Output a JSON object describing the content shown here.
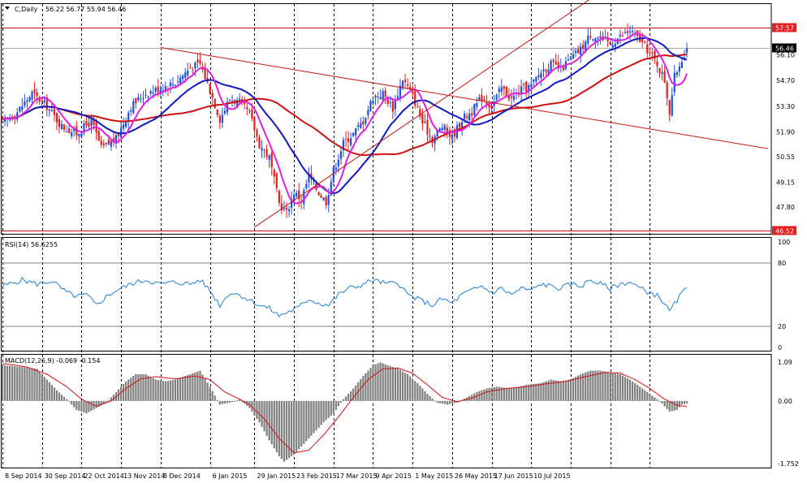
{
  "header": {
    "menu_icon": "triangle-down-icon",
    "symbol_label": "C,Daily",
    "ohlc_text": "56.22 56.77 55.94 56.46"
  },
  "rsi_panel": {
    "label": "RSI(14) 56.6255"
  },
  "macd_panel": {
    "label": "MACD(12,26,9) -0.069 -0.154"
  },
  "colors": {
    "background": "#ffffff",
    "grid": "#000000",
    "candle_up": "#1e50e6",
    "candle_down": "#e61e1e",
    "ma_fast": "#e020e0",
    "ma_mid": "#1018c0",
    "ma_slow": "#d01010",
    "trendline": "#c81414",
    "rsi_line": "#1e7fd6",
    "macd_hist": "#808080",
    "macd_signal": "#d01010"
  },
  "chart_data": [
    {
      "type": "candlestick",
      "panel": "price",
      "title": "C,Daily",
      "ohlc_last": {
        "open": 56.22,
        "high": 56.77,
        "low": 55.94,
        "close": 56.46
      },
      "y_ticks": [
        "56.10",
        "54.70",
        "53.30",
        "51.90",
        "50.55",
        "49.15",
        "47.80"
      ],
      "ylim": [
        46.52,
        58.6
      ],
      "x_ticks": [
        "8 Sep 2014",
        "30 Sep 2014",
        "22 Oct 2014",
        "13 Nov 2014",
        "8 Dec 2014",
        "6 Jan 2015",
        "29 Jan 2015",
        "23 Feb 2015",
        "17 Mar 2015",
        "9 Apr 2015",
        "1 May 2015",
        "26 May 2015",
        "17 Jun 2015",
        "10 Jul 2015"
      ],
      "price_tags": [
        {
          "value": 57.57,
          "text": "57.57",
          "kind": "horizontal-line"
        },
        {
          "value": 56.46,
          "text": "56.46",
          "kind": "current-price"
        },
        {
          "value": 46.52,
          "text": "46.52",
          "kind": "horizontal-line"
        }
      ],
      "close_anchors": [
        [
          0,
          52.4
        ],
        [
          6,
          53.0
        ],
        [
          12,
          54.0
        ],
        [
          18,
          53.3
        ],
        [
          24,
          52.2
        ],
        [
          30,
          51.8
        ],
        [
          36,
          52.5
        ],
        [
          40,
          51.0
        ],
        [
          46,
          51.5
        ],
        [
          52,
          53.3
        ],
        [
          58,
          54.0
        ],
        [
          64,
          54.3
        ],
        [
          70,
          54.6
        ],
        [
          76,
          55.4
        ],
        [
          80,
          55.6
        ],
        [
          84,
          54.2
        ],
        [
          88,
          52.6
        ],
        [
          92,
          53.7
        ],
        [
          96,
          53.5
        ],
        [
          100,
          52.9
        ],
        [
          104,
          51.2
        ],
        [
          108,
          50.5
        ],
        [
          112,
          48.0
        ],
        [
          115,
          47.5
        ],
        [
          118,
          48.6
        ],
        [
          121,
          48.2
        ],
        [
          124,
          49.5
        ],
        [
          128,
          48.6
        ],
        [
          131,
          48.1
        ],
        [
          134,
          49.8
        ],
        [
          138,
          51.3
        ],
        [
          142,
          51.8
        ],
        [
          146,
          52.5
        ],
        [
          150,
          53.8
        ],
        [
          154,
          54.0
        ],
        [
          158,
          53.2
        ],
        [
          162,
          54.8
        ],
        [
          166,
          53.9
        ],
        [
          170,
          52.4
        ],
        [
          174,
          51.5
        ],
        [
          178,
          52.2
        ],
        [
          182,
          51.6
        ],
        [
          186,
          52.6
        ],
        [
          190,
          53.0
        ],
        [
          194,
          53.8
        ],
        [
          198,
          53.3
        ],
        [
          202,
          54.3
        ],
        [
          206,
          53.7
        ],
        [
          210,
          54.2
        ],
        [
          214,
          54.4
        ],
        [
          218,
          55.2
        ],
        [
          222,
          55.6
        ],
        [
          226,
          55.3
        ],
        [
          230,
          55.9
        ],
        [
          234,
          56.4
        ],
        [
          238,
          57.2
        ],
        [
          242,
          57.0
        ],
        [
          246,
          56.7
        ],
        [
          250,
          57.1
        ],
        [
          254,
          57.4
        ],
        [
          258,
          56.9
        ],
        [
          262,
          56.2
        ],
        [
          265,
          55.6
        ],
        [
          268,
          54.7
        ],
        [
          270,
          53.0
        ],
        [
          272,
          54.9
        ],
        [
          275,
          55.9
        ],
        [
          277,
          56.46
        ]
      ],
      "trendlines": [
        {
          "from": [
            "8 Dec 2014",
            56.5
          ],
          "to": [
            "10 Jul 2015",
            53.0
          ],
          "extended": true
        },
        {
          "from": [
            "29 Jan 2015",
            46.7
          ],
          "to": [
            "10 Jul 2015",
            57.5
          ],
          "extended": true
        }
      ],
      "overlays": [
        "pink moving average",
        "blue moving average",
        "red moving average"
      ]
    },
    {
      "type": "line",
      "panel": "rsi",
      "title": "RSI(14) 56.6255",
      "last_value": 56.6255,
      "ylim": [
        0,
        100
      ],
      "y_ticks": [
        "100",
        "80",
        "20",
        "0"
      ],
      "levels": [
        80,
        20
      ],
      "anchors": [
        [
          0,
          58
        ],
        [
          8,
          64
        ],
        [
          14,
          60
        ],
        [
          20,
          63
        ],
        [
          26,
          52
        ],
        [
          30,
          48
        ],
        [
          34,
          50
        ],
        [
          38,
          40
        ],
        [
          42,
          48
        ],
        [
          46,
          54
        ],
        [
          52,
          60
        ],
        [
          58,
          64
        ],
        [
          64,
          60
        ],
        [
          70,
          62
        ],
        [
          76,
          60
        ],
        [
          80,
          64
        ],
        [
          84,
          54
        ],
        [
          88,
          40
        ],
        [
          92,
          52
        ],
        [
          96,
          50
        ],
        [
          100,
          45
        ],
        [
          104,
          40
        ],
        [
          108,
          37
        ],
        [
          112,
          30
        ],
        [
          116,
          34
        ],
        [
          120,
          38
        ],
        [
          124,
          46
        ],
        [
          128,
          42
        ],
        [
          132,
          40
        ],
        [
          136,
          50
        ],
        [
          140,
          56
        ],
        [
          144,
          58
        ],
        [
          150,
          64
        ],
        [
          156,
          60
        ],
        [
          160,
          62
        ],
        [
          164,
          50
        ],
        [
          170,
          44
        ],
        [
          174,
          40
        ],
        [
          178,
          46
        ],
        [
          182,
          42
        ],
        [
          186,
          50
        ],
        [
          190,
          54
        ],
        [
          194,
          58
        ],
        [
          198,
          52
        ],
        [
          202,
          56
        ],
        [
          206,
          50
        ],
        [
          210,
          56
        ],
        [
          214,
          54
        ],
        [
          218,
          60
        ],
        [
          222,
          58
        ],
        [
          226,
          56
        ],
        [
          230,
          60
        ],
        [
          234,
          58
        ],
        [
          238,
          64
        ],
        [
          242,
          60
        ],
        [
          246,
          56
        ],
        [
          250,
          60
        ],
        [
          254,
          62
        ],
        [
          258,
          56
        ],
        [
          262,
          52
        ],
        [
          266,
          48
        ],
        [
          270,
          34
        ],
        [
          274,
          48
        ],
        [
          277,
          56.6
        ]
      ]
    },
    {
      "type": "bar",
      "panel": "macd",
      "title": "MACD(12,26,9) -0.069 -0.154",
      "macd_last": -0.069,
      "signal_last": -0.154,
      "ylim": [
        -1.752,
        1.09
      ],
      "y_ticks": [
        "1.09",
        "0.00",
        "-1.752"
      ],
      "hist_anchors": [
        [
          0,
          1.0
        ],
        [
          8,
          0.95
        ],
        [
          14,
          0.9
        ],
        [
          18,
          0.6
        ],
        [
          22,
          0.3
        ],
        [
          26,
          0.05
        ],
        [
          30,
          -0.25
        ],
        [
          34,
          -0.35
        ],
        [
          38,
          -0.2
        ],
        [
          42,
          -0.05
        ],
        [
          46,
          0.25
        ],
        [
          50,
          0.55
        ],
        [
          54,
          0.75
        ],
        [
          58,
          0.75
        ],
        [
          62,
          0.6
        ],
        [
          66,
          0.55
        ],
        [
          70,
          0.6
        ],
        [
          76,
          0.75
        ],
        [
          80,
          0.85
        ],
        [
          84,
          0.4
        ],
        [
          88,
          -0.1
        ],
        [
          92,
          -0.05
        ],
        [
          96,
          0.05
        ],
        [
          100,
          -0.2
        ],
        [
          104,
          -0.6
        ],
        [
          108,
          -1.1
        ],
        [
          112,
          -1.55
        ],
        [
          114,
          -1.7
        ],
        [
          118,
          -1.5
        ],
        [
          122,
          -1.2
        ],
        [
          126,
          -0.9
        ],
        [
          130,
          -0.6
        ],
        [
          134,
          -0.35
        ],
        [
          138,
          0.05
        ],
        [
          142,
          0.35
        ],
        [
          146,
          0.7
        ],
        [
          150,
          1.0
        ],
        [
          153,
          1.08
        ],
        [
          156,
          1.0
        ],
        [
          160,
          0.9
        ],
        [
          164,
          0.75
        ],
        [
          168,
          0.5
        ],
        [
          172,
          0.2
        ],
        [
          176,
          -0.05
        ],
        [
          180,
          -0.1
        ],
        [
          184,
          -0.05
        ],
        [
          188,
          0.1
        ],
        [
          192,
          0.25
        ],
        [
          196,
          0.35
        ],
        [
          200,
          0.4
        ],
        [
          206,
          0.35
        ],
        [
          212,
          0.45
        ],
        [
          218,
          0.5
        ],
        [
          222,
          0.6
        ],
        [
          226,
          0.55
        ],
        [
          230,
          0.6
        ],
        [
          234,
          0.75
        ],
        [
          238,
          0.85
        ],
        [
          242,
          0.85
        ],
        [
          246,
          0.8
        ],
        [
          250,
          0.75
        ],
        [
          254,
          0.6
        ],
        [
          258,
          0.4
        ],
        [
          262,
          0.2
        ],
        [
          266,
          0.0
        ],
        [
          270,
          -0.3
        ],
        [
          273,
          -0.25
        ],
        [
          275,
          -0.1
        ],
        [
          277,
          -0.069
        ]
      ],
      "signal_anchors": [
        [
          0,
          1.05
        ],
        [
          10,
          0.95
        ],
        [
          18,
          0.75
        ],
        [
          26,
          0.4
        ],
        [
          32,
          0.05
        ],
        [
          38,
          -0.15
        ],
        [
          44,
          0.0
        ],
        [
          50,
          0.35
        ],
        [
          56,
          0.62
        ],
        [
          62,
          0.68
        ],
        [
          70,
          0.62
        ],
        [
          78,
          0.7
        ],
        [
          84,
          0.6
        ],
        [
          90,
          0.25
        ],
        [
          96,
          0.05
        ],
        [
          100,
          -0.1
        ],
        [
          106,
          -0.5
        ],
        [
          112,
          -1.05
        ],
        [
          118,
          -1.45
        ],
        [
          124,
          -1.38
        ],
        [
          130,
          -0.95
        ],
        [
          136,
          -0.45
        ],
        [
          142,
          0.1
        ],
        [
          148,
          0.6
        ],
        [
          154,
          0.9
        ],
        [
          160,
          0.92
        ],
        [
          166,
          0.78
        ],
        [
          172,
          0.45
        ],
        [
          178,
          0.1
        ],
        [
          184,
          -0.02
        ],
        [
          190,
          0.08
        ],
        [
          196,
          0.25
        ],
        [
          204,
          0.35
        ],
        [
          212,
          0.4
        ],
        [
          220,
          0.48
        ],
        [
          228,
          0.55
        ],
        [
          236,
          0.68
        ],
        [
          244,
          0.8
        ],
        [
          250,
          0.78
        ],
        [
          256,
          0.6
        ],
        [
          262,
          0.35
        ],
        [
          268,
          0.05
        ],
        [
          273,
          -0.12
        ],
        [
          277,
          -0.154
        ]
      ]
    }
  ]
}
